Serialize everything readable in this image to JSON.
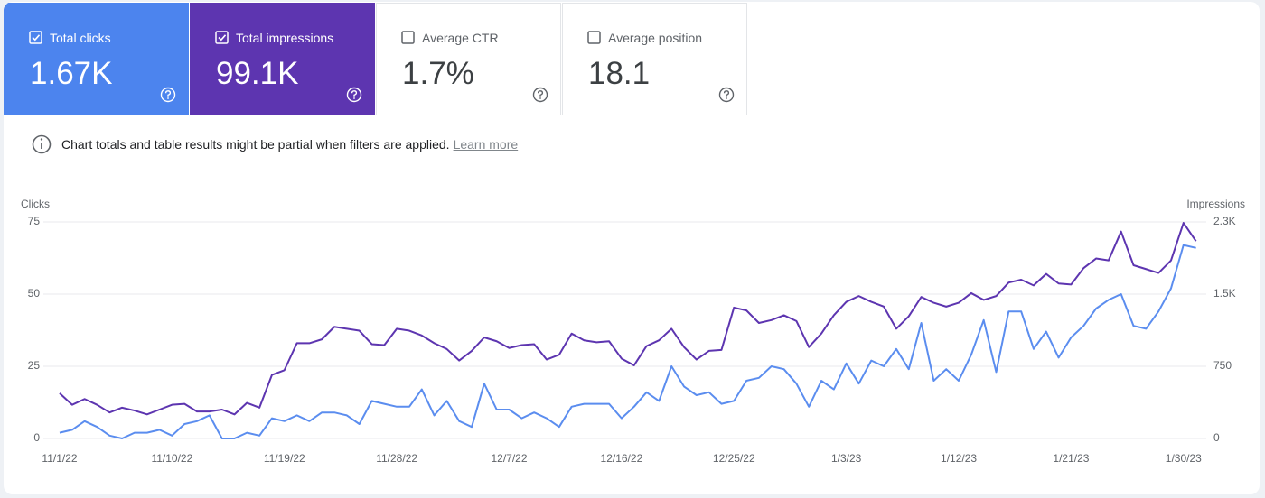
{
  "cards": [
    {
      "label": "Total clicks",
      "value": "1.67K",
      "checked": true,
      "color": "#4c84ee"
    },
    {
      "label": "Total impressions",
      "value": "99.1K",
      "checked": true,
      "color": "#5d35b0"
    },
    {
      "label": "Average CTR",
      "value": "1.7%",
      "checked": false
    },
    {
      "label": "Average position",
      "value": "18.1",
      "checked": false
    }
  ],
  "notice": {
    "text": "Chart totals and table results might be partial when filters are applied.",
    "link": "Learn more"
  },
  "chart_data": {
    "type": "line",
    "y_label": "Clicks",
    "y2_label": "Impressions",
    "categories": [
      "11/1/22",
      null,
      null,
      null,
      null,
      null,
      null,
      null,
      null,
      "11/10/22",
      null,
      null,
      null,
      null,
      null,
      null,
      null,
      null,
      "11/19/22",
      null,
      null,
      null,
      null,
      null,
      null,
      null,
      null,
      "11/28/22",
      null,
      null,
      null,
      null,
      null,
      null,
      null,
      null,
      "12/7/22",
      null,
      null,
      null,
      null,
      null,
      null,
      null,
      null,
      "12/16/22",
      null,
      null,
      null,
      null,
      null,
      null,
      null,
      null,
      "12/25/22",
      null,
      null,
      null,
      null,
      null,
      null,
      null,
      null,
      "1/3/23",
      null,
      null,
      null,
      null,
      null,
      null,
      null,
      null,
      "1/12/23",
      null,
      null,
      null,
      null,
      null,
      null,
      null,
      null,
      "1/21/23",
      null,
      null,
      null,
      null,
      null,
      null,
      null,
      null,
      "1/30/23",
      null
    ],
    "ylim": [
      0,
      75
    ],
    "yticks": [
      0,
      25,
      50,
      75
    ],
    "y2lim": [
      0,
      2250
    ],
    "y2ticks": [
      0,
      750,
      {
        "value": 1500,
        "label": "1.5K"
      },
      {
        "value": 2250,
        "label": "2.3K"
      }
    ],
    "grid": true,
    "series": [
      {
        "name": "Total impressions",
        "axis": "y2",
        "color": "#5d35b0",
        "values": [
          470,
          350,
          410,
          350,
          270,
          320,
          290,
          250,
          300,
          350,
          360,
          280,
          280,
          300,
          250,
          370,
          320,
          660,
          710,
          990,
          990,
          1030,
          1160,
          1140,
          1120,
          980,
          970,
          1140,
          1120,
          1070,
          990,
          930,
          810,
          910,
          1050,
          1010,
          940,
          970,
          980,
          820,
          870,
          1090,
          1020,
          1000,
          1010,
          830,
          760,
          960,
          1020,
          1140,
          950,
          820,
          910,
          920,
          1360,
          1330,
          1200,
          1230,
          1280,
          1220,
          950,
          1090,
          1280,
          1420,
          1480,
          1420,
          1370,
          1140,
          1270,
          1470,
          1410,
          1370,
          1410,
          1510,
          1440,
          1480,
          1620,
          1650,
          1590,
          1710,
          1610,
          1600,
          1770,
          1870,
          1850,
          2150,
          1800,
          1760,
          1720,
          1850,
          2240,
          2050
        ]
      },
      {
        "name": "Total clicks",
        "color": "#5b8def",
        "values": [
          2,
          3,
          6,
          4,
          1,
          0,
          2,
          2,
          3,
          1,
          5,
          6,
          8,
          0,
          0,
          2,
          1,
          7,
          6,
          8,
          6,
          9,
          9,
          8,
          5,
          13,
          12,
          11,
          11,
          17,
          8,
          13,
          6,
          4,
          19,
          10,
          10,
          7,
          9,
          7,
          4,
          11,
          12,
          12,
          12,
          7,
          11,
          16,
          13,
          25,
          18,
          15,
          16,
          12,
          13,
          20,
          21,
          25,
          24,
          19,
          11,
          20,
          17,
          26,
          19,
          27,
          25,
          31,
          24,
          40,
          20,
          24,
          20,
          29,
          41,
          23,
          44,
          44,
          31,
          37,
          28,
          35,
          39,
          45,
          48,
          50,
          39,
          38,
          44,
          52,
          67,
          66
        ]
      }
    ]
  }
}
